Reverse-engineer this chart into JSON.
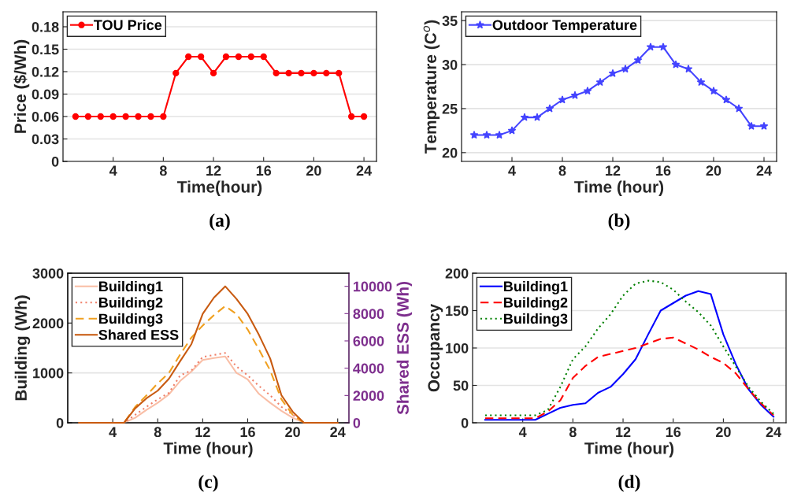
{
  "chart_data": [
    {
      "type": "line",
      "xlabel": "Time(hour)",
      "ylabel": "Price ($/Wh)",
      "annotations": [
        "(a)"
      ],
      "x": [
        1,
        2,
        3,
        4,
        5,
        6,
        7,
        8,
        9,
        10,
        11,
        12,
        13,
        14,
        15,
        16,
        17,
        18,
        19,
        20,
        21,
        22,
        23,
        24
      ],
      "xlim": [
        0,
        25
      ],
      "xticks": [
        4,
        8,
        12,
        16,
        20,
        24
      ],
      "ylim": [
        0,
        0.2
      ],
      "yticks": [
        0,
        0.03,
        0.06,
        0.09,
        0.12,
        0.15,
        0.18
      ],
      "grid": "y",
      "legend": "top left",
      "marker": "circle",
      "line_style": "solid",
      "series": [
        {
          "name": "TOU Price",
          "color": "#ff0000",
          "values": [
            0.06,
            0.06,
            0.06,
            0.06,
            0.06,
            0.06,
            0.06,
            0.06,
            0.118,
            0.14,
            0.14,
            0.118,
            0.14,
            0.14,
            0.14,
            0.14,
            0.118,
            0.118,
            0.118,
            0.118,
            0.118,
            0.118,
            0.06,
            0.06
          ]
        }
      ]
    },
    {
      "type": "line",
      "xlabel": "Time (hour)",
      "ylabel": "Temperature (C$^{o}$)",
      "annotations": [
        "(b)"
      ],
      "x": [
        1,
        2,
        3,
        4,
        5,
        6,
        7,
        8,
        9,
        10,
        11,
        12,
        13,
        14,
        15,
        16,
        17,
        18,
        19,
        20,
        21,
        22,
        23,
        24
      ],
      "xlim": [
        0,
        25
      ],
      "xticks": [
        4,
        8,
        12,
        16,
        20,
        24
      ],
      "ylim": [
        19,
        36
      ],
      "yticks": [
        20,
        25,
        30,
        35
      ],
      "grid": "y",
      "legend": "top left",
      "marker": "star",
      "line_style": "solid",
      "series": [
        {
          "name": "Outdoor Temperature",
          "color": "#4444ff",
          "values": [
            22,
            22,
            22,
            22.5,
            24,
            24,
            25,
            26,
            26.5,
            27,
            28,
            29,
            29.5,
            30.5,
            32,
            32,
            30,
            29.5,
            28,
            27,
            26,
            25,
            23,
            23
          ]
        }
      ]
    },
    {
      "type": "line",
      "xlabel": "Time (hour)",
      "ylabel": "Building (Wh)",
      "y2label": "Shared ESS (Wh)",
      "annotations": [
        "(c)"
      ],
      "x": [
        1,
        2,
        3,
        4,
        5,
        6,
        7,
        8,
        9,
        10,
        11,
        12,
        13,
        14,
        15,
        16,
        17,
        18,
        19,
        20,
        21,
        22,
        23,
        24
      ],
      "xlim": [
        0,
        25
      ],
      "xticks": [
        4,
        8,
        12,
        16,
        20,
        24
      ],
      "ylim": [
        0,
        3000
      ],
      "yticks": [
        0,
        1000,
        2000,
        3000
      ],
      "y2lim": [
        0,
        10960
      ],
      "y2ticks": [
        0,
        2000,
        4000,
        6000,
        8000,
        10000
      ],
      "grid": "y",
      "legend": "top left",
      "marker": "none",
      "series": [
        {
          "name": "Building1",
          "color": "#f9bea6",
          "line_style": "solid",
          "values": [
            null,
            null,
            null,
            0,
            0,
            100,
            260,
            400,
            570,
            840,
            1030,
            1260,
            1300,
            1330,
            1000,
            870,
            580,
            400,
            240,
            100,
            0,
            0,
            null,
            null
          ]
        },
        {
          "name": "Building2",
          "color": "#f07f68",
          "line_style": "dotted",
          "values": [
            null,
            null,
            null,
            0,
            0,
            160,
            320,
            470,
            600,
            950,
            1050,
            1320,
            1360,
            1400,
            1130,
            950,
            740,
            550,
            320,
            160,
            0,
            0,
            null,
            null
          ]
        },
        {
          "name": "Building3",
          "color": "#f0a020",
          "line_style": "dashed",
          "values": [
            null,
            null,
            null,
            0,
            0,
            320,
            550,
            790,
            1000,
            1370,
            1710,
            1950,
            2160,
            2340,
            2180,
            1870,
            1470,
            1050,
            470,
            160,
            0,
            0,
            null,
            null
          ]
        },
        {
          "name": "Shared ESS",
          "color": "#c85a10",
          "line_style": "solid",
          "axis": "y2",
          "values": [
            0,
            0,
            0,
            0,
            0,
            1060,
            1790,
            2350,
            3230,
            4520,
            5770,
            7980,
            9170,
            10000,
            9080,
            7980,
            6440,
            4710,
            2020,
            810,
            0,
            0,
            0,
            0
          ]
        }
      ]
    },
    {
      "type": "line",
      "xlabel": "Time (hour)",
      "ylabel": "Occupancy",
      "annotations": [
        "(d)"
      ],
      "x": [
        1,
        2,
        3,
        4,
        5,
        6,
        7,
        8,
        9,
        10,
        11,
        12,
        13,
        14,
        15,
        16,
        17,
        18,
        19,
        20,
        21,
        22,
        23,
        24
      ],
      "xlim": [
        0,
        25
      ],
      "xticks": [
        4,
        8,
        12,
        16,
        20,
        24
      ],
      "ylim": [
        0,
        200
      ],
      "yticks": [
        0,
        50,
        100,
        150,
        200
      ],
      "grid": "y",
      "legend": "top left",
      "marker": "none",
      "series": [
        {
          "name": "Building1",
          "color": "#0000ff",
          "line_style": "solid",
          "values": [
            4,
            4,
            4,
            4,
            4,
            12,
            20,
            24,
            26,
            40,
            48,
            65,
            85,
            118,
            150,
            160,
            170,
            176,
            172,
            118,
            78,
            45,
            24,
            8
          ]
        },
        {
          "name": "Building2",
          "color": "#ff0000",
          "line_style": "dashed",
          "values": [
            6,
            6,
            6,
            6,
            6,
            15,
            30,
            60,
            76,
            88,
            92,
            96,
            100,
            106,
            112,
            114,
            106,
            98,
            88,
            80,
            66,
            45,
            26,
            10
          ]
        },
        {
          "name": "Building3",
          "color": "#008000",
          "line_style": "dotted",
          "values": [
            10,
            10,
            10,
            10,
            10,
            17,
            48,
            85,
            102,
            126,
            145,
            170,
            186,
            190,
            188,
            178,
            162,
            148,
            130,
            102,
            75,
            48,
            28,
            12
          ]
        }
      ]
    }
  ]
}
